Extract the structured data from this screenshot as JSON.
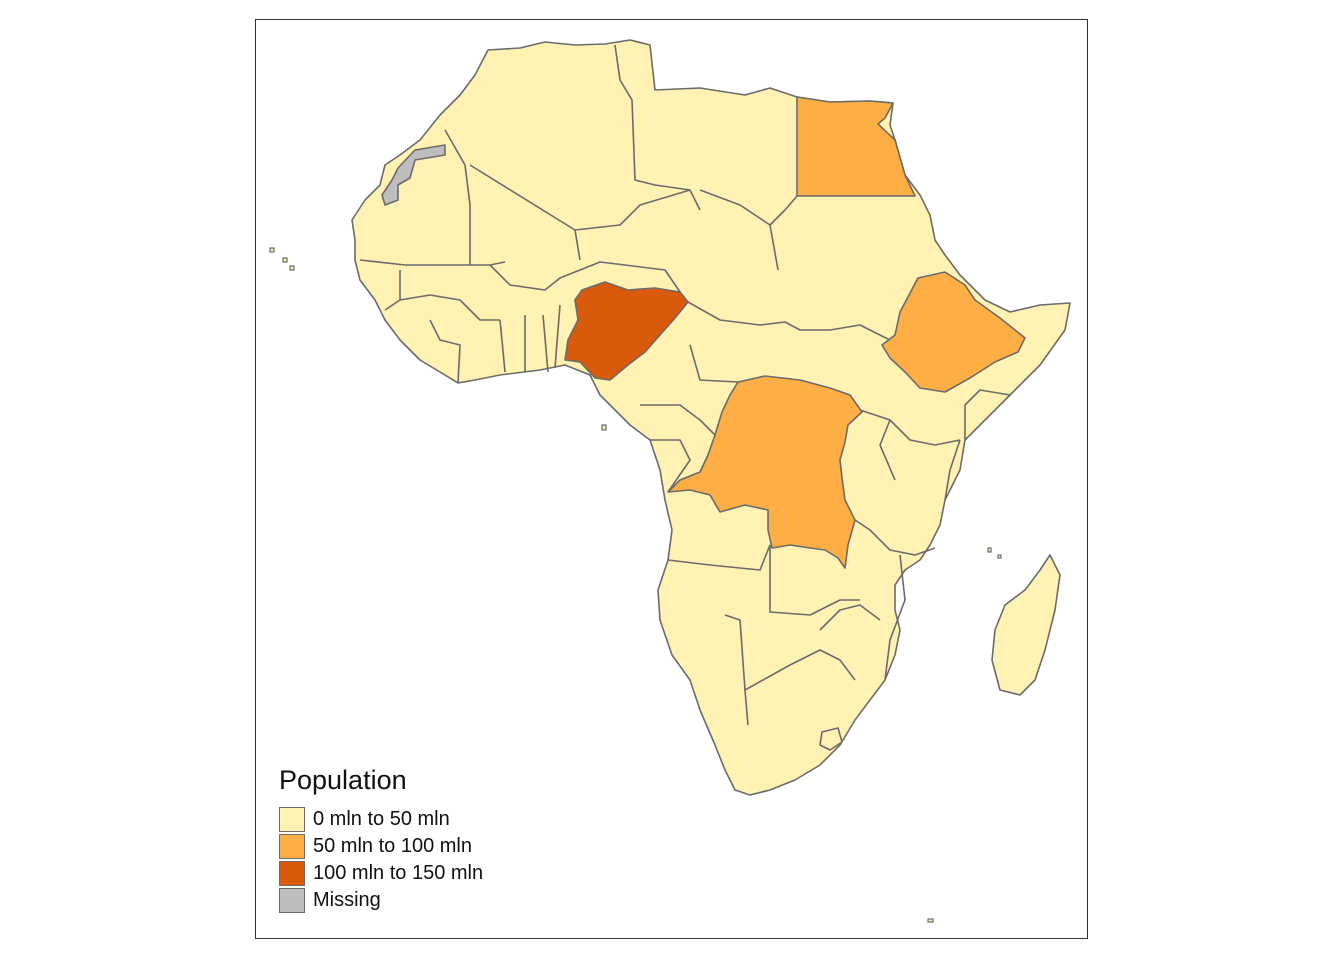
{
  "map": {
    "region": "Africa",
    "variable": "Population",
    "classes": [
      {
        "label": "0 mln to 50 mln",
        "color": "#FFF2B3"
      },
      {
        "label": "50 mln to 100 mln",
        "color": "#FDAE45"
      },
      {
        "label": "100 mln to 150 mln",
        "color": "#D95A0A"
      },
      {
        "label": "Missing",
        "color": "#BEBEBE"
      }
    ],
    "highlighted_countries": [
      {
        "name": "Egypt",
        "class": "50 mln to 100 mln"
      },
      {
        "name": "Ethiopia",
        "class": "50 mln to 100 mln"
      },
      {
        "name": "Democratic Republic of the Congo",
        "class": "50 mln to 100 mln"
      },
      {
        "name": "Nigeria",
        "class": "100 mln to 150 mln"
      },
      {
        "name": "Western Sahara",
        "class": "Missing"
      }
    ],
    "default_class": "0 mln to 50 mln",
    "border_color": "#6B6B6B"
  },
  "legend": {
    "title": "Population",
    "items": [
      {
        "label": "0 mln to 50 mln",
        "color": "#FFF2B3"
      },
      {
        "label": "50 mln to 100 mln",
        "color": "#FDAE45"
      },
      {
        "label": "100 mln to 150 mln",
        "color": "#D95A0A"
      },
      {
        "label": "Missing",
        "color": "#BEBEBE"
      }
    ]
  }
}
